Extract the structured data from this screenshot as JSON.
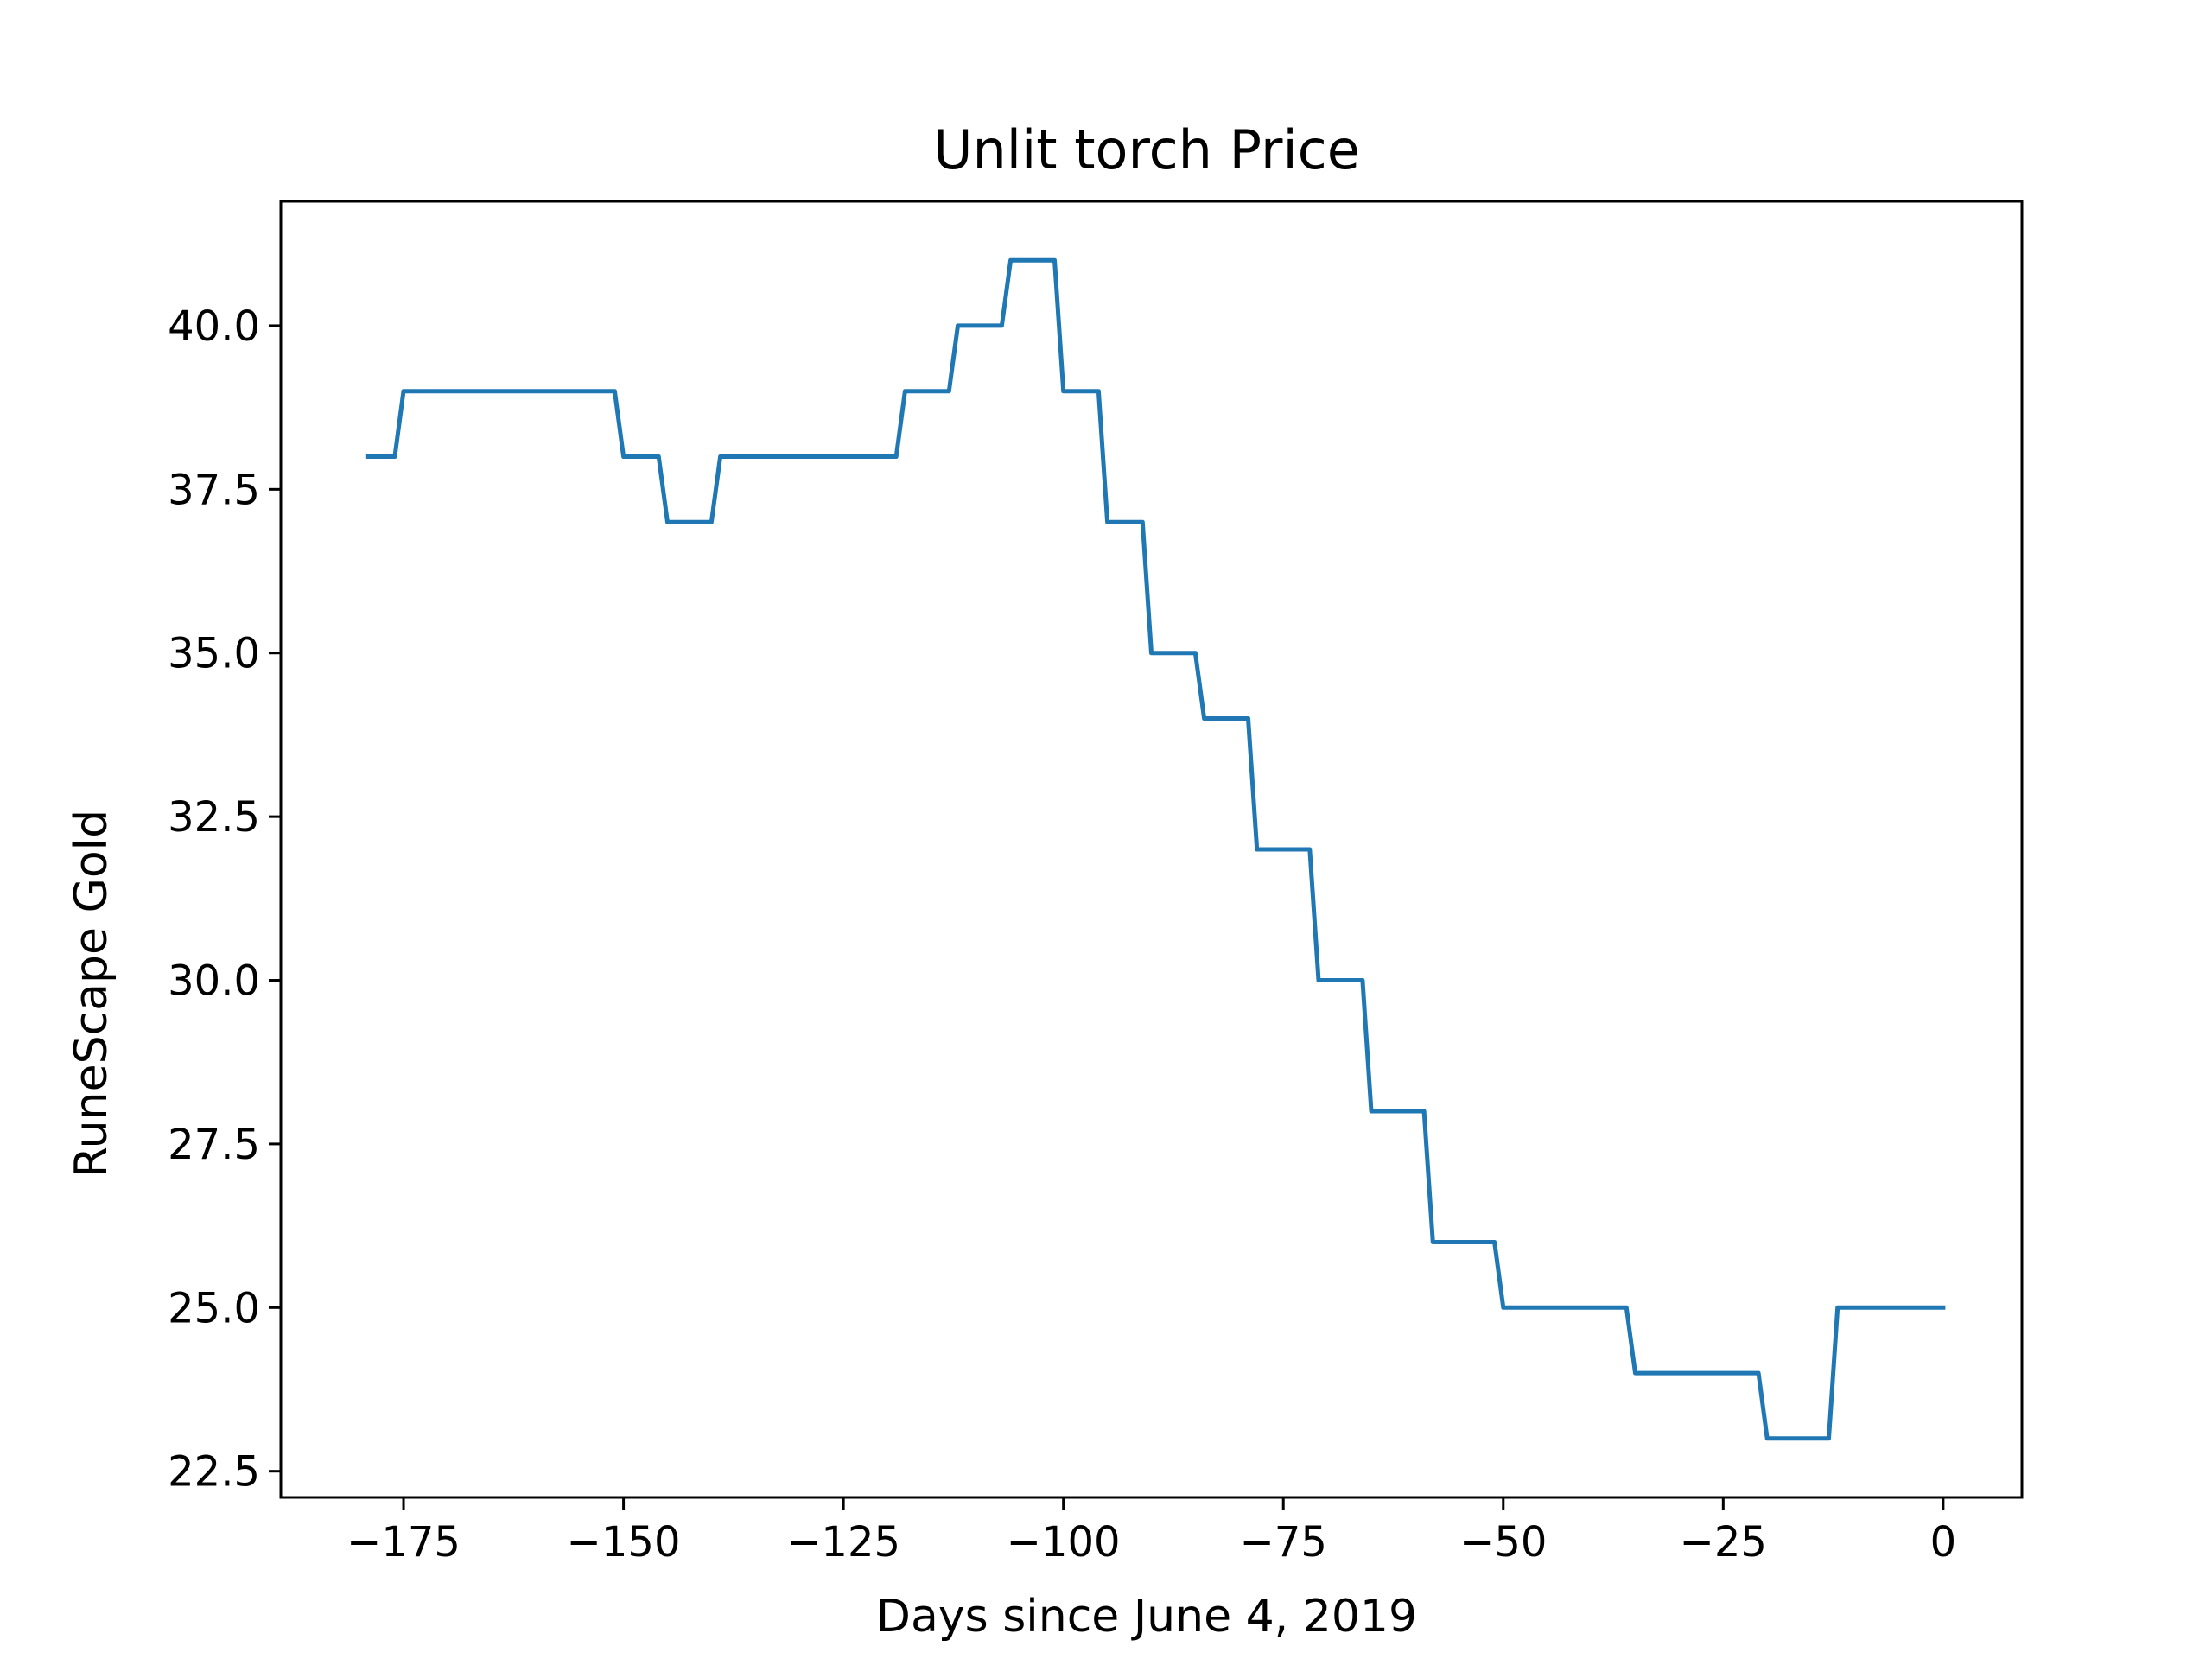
{
  "chart_data": {
    "type": "line",
    "title": "Unlit torch Price",
    "xlabel": "Days since June 4, 2019",
    "ylabel": "RuneScape Gold",
    "xlim": [
      -188.95,
      8.95
    ],
    "ylim": [
      22.1,
      41.9
    ],
    "x_ticks": [
      -175,
      -150,
      -125,
      -100,
      -75,
      -50,
      -25,
      0
    ],
    "x_tick_labels": [
      "−175",
      "−150",
      "−125",
      "−100",
      "−75",
      "−50",
      "−25",
      "0"
    ],
    "y_ticks": [
      22.5,
      25.0,
      27.5,
      30.0,
      32.5,
      35.0,
      37.5,
      40.0
    ],
    "y_tick_labels": [
      "22.5",
      "25.0",
      "27.5",
      "30.0",
      "32.5",
      "35.0",
      "37.5",
      "40.0"
    ],
    "grid": false,
    "line_color": "#1f77b4",
    "series": [
      {
        "x": [
          -179,
          -176,
          -175,
          -151,
          -150,
          -146,
          -145,
          -140,
          -139,
          -119,
          -118,
          -113,
          -112,
          -107,
          -106,
          -101,
          -100,
          -96,
          -95,
          -91,
          -90,
          -85,
          -84,
          -79,
          -78,
          -72,
          -71,
          -66,
          -65,
          -59,
          -58,
          -51,
          -50,
          -36,
          -35,
          -21,
          -20,
          -13,
          -12,
          0
        ],
        "y": [
          38,
          38,
          39,
          39,
          38,
          38,
          37,
          37,
          38,
          38,
          39,
          39,
          40,
          40,
          41,
          41,
          39,
          39,
          37,
          37,
          35,
          35,
          34,
          34,
          32,
          32,
          30,
          30,
          28,
          28,
          26,
          26,
          25,
          25,
          24,
          24,
          23,
          23,
          25,
          25
        ]
      }
    ]
  }
}
